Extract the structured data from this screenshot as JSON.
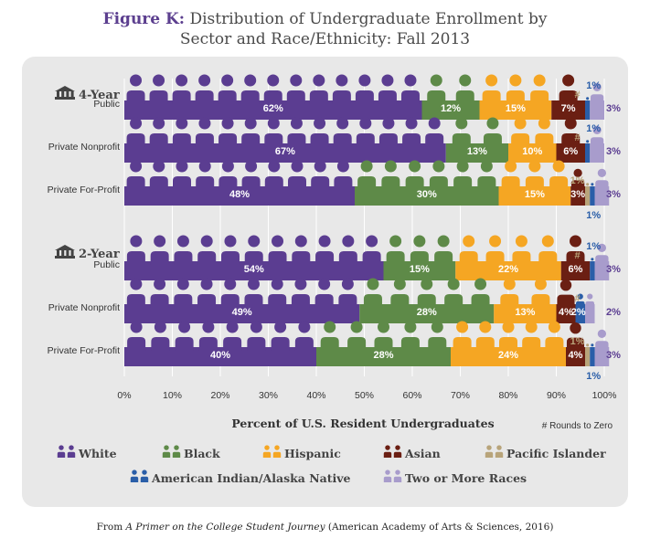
{
  "title": {
    "figure_label": "Figure K:",
    "line1": "Distribution of Undergraduate Enrollment by",
    "line2": "Sector and Race/Ethnicity: Fall 2013"
  },
  "caption": {
    "prefix": "From ",
    "italic": "A Primer on the College Student Journey",
    "suffix": " (American Academy of Arts & Sciences, 2016)"
  },
  "footnote": "# Rounds to Zero",
  "colors": {
    "White": "#5b3d91",
    "Black": "#5e8a48",
    "Hispanic": "#f5a623",
    "Asian": "#6b1f13",
    "Pacific Islander": "#b8a47a",
    "American Indian/Alaska Native": "#2a5ea8",
    "Two or More Races": "#a89ccc",
    "panel": "#e8e8e8"
  },
  "chart_data": {
    "type": "bar",
    "orientation": "horizontal",
    "stacked": true,
    "xlabel": "Percent of U.S. Resident Undergraduates",
    "xlim": [
      0,
      100
    ],
    "xticks": [
      "0%",
      "10%",
      "20%",
      "30%",
      "40%",
      "50%",
      "60%",
      "70%",
      "80%",
      "90%",
      "100%"
    ],
    "grid": true,
    "legend_position": "bottom",
    "groups": [
      {
        "label": "4-Year",
        "rows": [
          {
            "category": "Public",
            "values": [
              62,
              12,
              15,
              7,
              0,
              1,
              3
            ],
            "labels": [
              "62%",
              "12%",
              "15%",
              "7%",
              "#",
              "1%",
              "3%"
            ]
          },
          {
            "category": "Private Nonprofit",
            "values": [
              67,
              13,
              10,
              6,
              0,
              1,
              3
            ],
            "labels": [
              "67%",
              "13%",
              "10%",
              "6%",
              "#",
              "1%",
              "3%"
            ]
          },
          {
            "category": "Private For-Profit",
            "values": [
              48,
              30,
              15,
              3,
              1,
              1,
              3
            ],
            "labels": [
              "48%",
              "30%",
              "15%",
              "3%",
              "1%",
              "1%",
              "3%"
            ]
          }
        ]
      },
      {
        "label": "2-Year",
        "rows": [
          {
            "category": "Public",
            "values": [
              54,
              15,
              22,
              6,
              0,
              1,
              3
            ],
            "labels": [
              "54%",
              "15%",
              "22%",
              "6%",
              "#",
              "1%",
              "3%"
            ]
          },
          {
            "category": "Private Nonprofit",
            "values": [
              49,
              28,
              13,
              4,
              0,
              2,
              2
            ],
            "labels": [
              "49%",
              "28%",
              "13%",
              "4%",
              "#",
              "2%",
              "2%"
            ]
          },
          {
            "category": "Private For-Profit",
            "values": [
              40,
              28,
              24,
              4,
              1,
              1,
              3
            ],
            "labels": [
              "40%",
              "28%",
              "24%",
              "4%",
              "1%",
              "1%",
              "3%"
            ]
          }
        ]
      }
    ],
    "series": [
      {
        "name": "White",
        "color": "#5b3d91"
      },
      {
        "name": "Black",
        "color": "#5e8a48"
      },
      {
        "name": "Hispanic",
        "color": "#f5a623"
      },
      {
        "name": "Asian",
        "color": "#6b1f13"
      },
      {
        "name": "Pacific Islander",
        "color": "#b8a47a"
      },
      {
        "name": "American Indian/Alaska Native",
        "color": "#2a5ea8"
      },
      {
        "name": "Two or More Races",
        "color": "#a89ccc"
      }
    ]
  }
}
